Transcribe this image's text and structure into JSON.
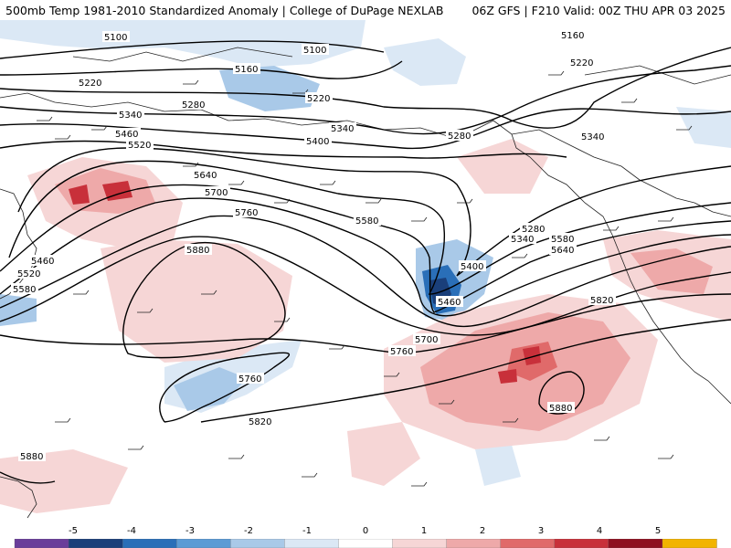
{
  "header": {
    "title": "500mb Temp 1981-2010 Standardized Anomaly | College of DuPage NEXLAB",
    "run": "06Z GFS | F210 Valid: 00Z THU APR 03 2025"
  },
  "contour_labels": [
    "5100",
    "5100",
    "5160",
    "5160",
    "5220",
    "5220",
    "5220",
    "5280",
    "5280",
    "5280",
    "5340",
    "5340",
    "5340",
    "5340",
    "5400",
    "5400",
    "5460",
    "5460",
    "5460",
    "5520",
    "5520",
    "5580",
    "5580",
    "5580",
    "5640",
    "5640",
    "5700",
    "5700",
    "5760",
    "5760",
    "5760",
    "5820",
    "5820",
    "5880",
    "5880",
    "5880"
  ],
  "colorbar": {
    "labels": [
      "-5",
      "-4",
      "-3",
      "-2",
      "-1",
      "0",
      "1",
      "2",
      "3",
      "4",
      "5"
    ],
    "colors": [
      "#6a3d9a",
      "#1a3f7a",
      "#2a6fb8",
      "#5b9bd5",
      "#a9c9e8",
      "#dbe8f5",
      "#ffffff",
      "#f6d6d6",
      "#eea9a9",
      "#e06a6a",
      "#c8303a",
      "#8e1020",
      "#f2b400"
    ]
  }
}
